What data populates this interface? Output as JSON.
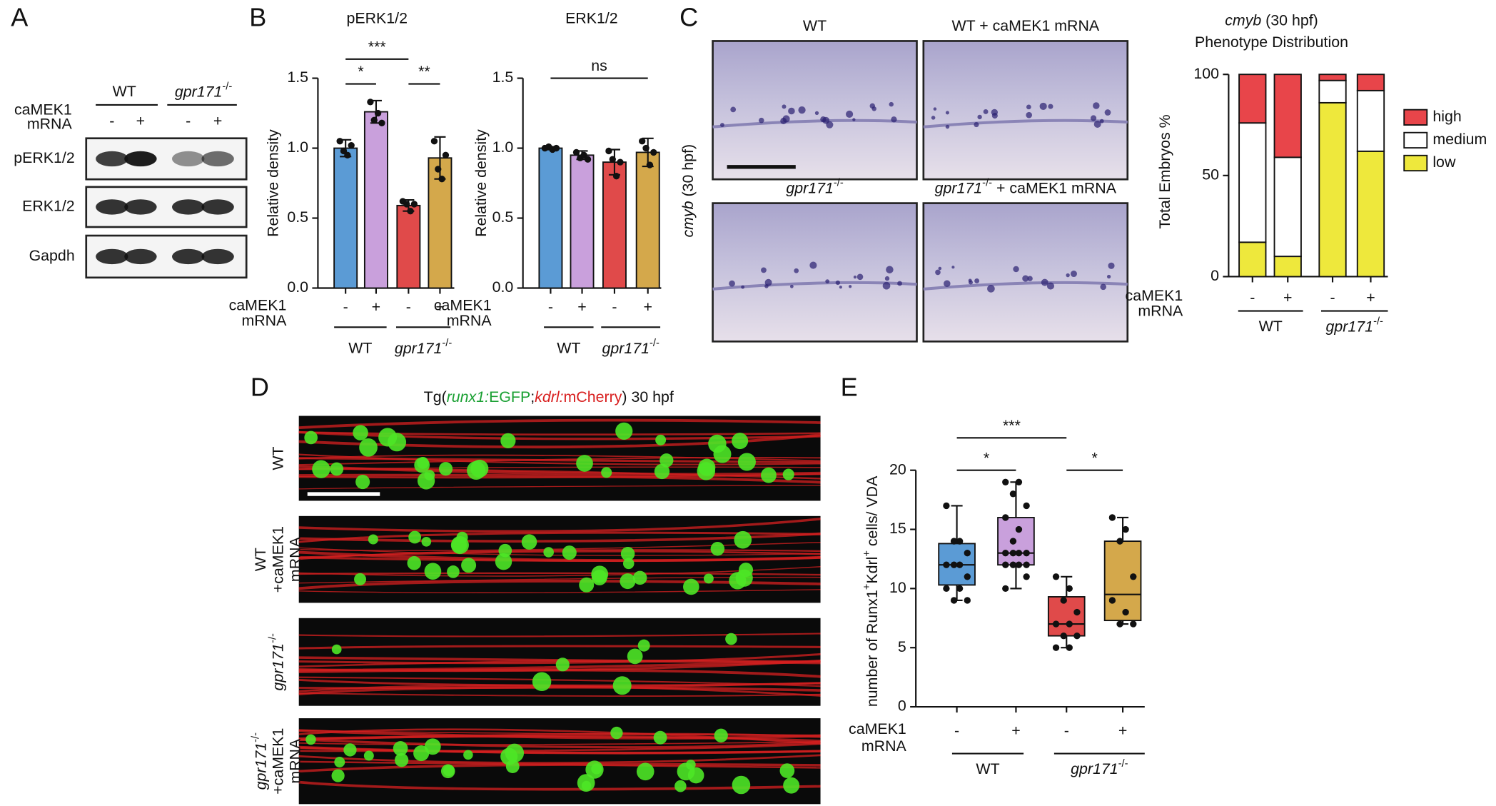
{
  "panel_letters": [
    "A",
    "B",
    "C",
    "D",
    "E"
  ],
  "panel_a": {
    "groups": [
      "WT",
      [
        {
          "text": "gpr171",
          "italic": true
        },
        {
          "text": "-/-",
          "sup": true
        }
      ]
    ],
    "row_label": [
      "caMEK1",
      "mRNA"
    ],
    "lanes": [
      "-",
      "+",
      "-",
      "+"
    ],
    "blots": [
      "pERK1/2",
      "ERK1/2",
      "Gapdh"
    ]
  },
  "panel_c_images": {
    "side_label": [
      {
        "text": "cmyb",
        "italic": true
      },
      {
        "text": " (30 hpf)"
      }
    ],
    "labels": [
      "WT",
      "WT + caMEK1 mRNA",
      [
        {
          "text": "gpr171",
          "italic": true
        },
        {
          "text": "-/-",
          "sup": true
        }
      ],
      [
        {
          "text": "gpr171",
          "italic": true
        },
        {
          "text": "-/-",
          "sup": true
        },
        {
          "text": " + caMEK1 mRNA"
        }
      ]
    ]
  },
  "panel_d": {
    "title": [
      {
        "text": "Tg("
      },
      {
        "text": "runx1:",
        "italic": true,
        "color": "#1aa033"
      },
      {
        "text": "EGFP",
        "color": "#1aa033"
      },
      {
        "text": ";"
      },
      {
        "text": "kdrl:",
        "italic": true,
        "color": "#d81e1e"
      },
      {
        "text": "mCherry",
        "color": "#d81e1e"
      },
      {
        "text": ") 30 hpf"
      }
    ],
    "rows": [
      [
        "WT"
      ],
      [
        "WT",
        "+caMEK1",
        "mRNA"
      ],
      [
        [
          {
            "text": "gpr171",
            "italic": true
          },
          {
            "text": "-/-",
            "sup": true
          }
        ]
      ],
      [
        [
          {
            "text": "gpr171",
            "italic": true
          },
          {
            "text": "-/-",
            "sup": true
          }
        ],
        "+caMEK1",
        "mRNA"
      ]
    ]
  },
  "chart_data": [
    {
      "type": "bar",
      "title": "pERK1/2",
      "y_label": "Relative density",
      "categories": [
        "-",
        "+",
        "-",
        "+"
      ],
      "colors": [
        "#5b9bd5",
        "#c9a0dc",
        "#e04a4a",
        "#d4a84b"
      ],
      "values": [
        1.0,
        1.26,
        0.59,
        0.93
      ],
      "errors": [
        0.06,
        0.08,
        0.04,
        0.15
      ],
      "points": [
        [
          1.05,
          0.98,
          0.95,
          1.02
        ],
        [
          1.33,
          1.2,
          1.25,
          1.18
        ],
        [
          0.62,
          0.6,
          0.55,
          0.6
        ],
        [
          1.05,
          0.85,
          0.78,
          0.95
        ]
      ],
      "ylim": [
        0,
        1.5
      ],
      "yticks": [
        {
          "value": 0,
          "label": "0.0"
        },
        0.5,
        {
          "value": 1,
          "label": "1.0"
        },
        1.5
      ],
      "row_label": [
        "caMEK1",
        "mRNA"
      ],
      "groups": [
        "WT",
        [
          {
            "text": "gpr171",
            "italic": true
          },
          {
            "text": "-/-",
            "sup": true
          }
        ]
      ],
      "annotations": [
        "***",
        "*",
        "**"
      ]
    },
    {
      "type": "bar",
      "title": "ERK1/2",
      "y_label": "Relative density",
      "categories": [
        "-",
        "+",
        "-",
        "+"
      ],
      "colors": [
        "#5b9bd5",
        "#c9a0dc",
        "#e04a4a",
        "#d4a84b"
      ],
      "values": [
        1.0,
        0.95,
        0.9,
        0.97
      ],
      "errors": [
        0.01,
        0.03,
        0.09,
        0.1
      ],
      "points": [
        [
          1.0,
          1.01,
          0.99,
          1.0
        ],
        [
          0.97,
          0.93,
          0.95,
          0.92
        ],
        [
          0.98,
          0.92,
          0.8,
          0.9
        ],
        [
          1.05,
          1.0,
          0.88,
          0.97
        ]
      ],
      "ylim": [
        0,
        1.5
      ],
      "yticks": [
        {
          "value": 0,
          "label": "0.0"
        },
        0.5,
        {
          "value": 1,
          "label": "1.0"
        },
        1.5
      ],
      "row_label": [
        "caMEK1",
        "mRNA"
      ],
      "groups": [
        "WT",
        [
          {
            "text": "gpr171",
            "italic": true
          },
          {
            "text": "-/-",
            "sup": true
          }
        ]
      ],
      "annotations": [
        "ns"
      ]
    },
    {
      "type": "stacked",
      "title": [
        {
          "text": "cmyb",
          "italic": true
        },
        {
          "text": " (30 hpf)"
        }
      ],
      "subtitle": "Phenotype Distribution",
      "y_label": "Total Embryos %",
      "categories": [
        "-",
        "+",
        "-",
        "+"
      ],
      "series": [
        {
          "name": "low",
          "color": "#eee83c",
          "values": [
            17,
            10,
            86,
            62
          ]
        },
        {
          "name": "medium",
          "color": "#ffffff",
          "values": [
            59,
            49,
            11,
            30
          ]
        },
        {
          "name": "high",
          "color": "#e8454a",
          "values": [
            24,
            41,
            3,
            8
          ]
        }
      ],
      "ylim": [
        0,
        100
      ],
      "yticks": [
        0,
        50,
        100
      ],
      "legend": "right",
      "row_label": [
        "caMEK1",
        "mRNA"
      ],
      "groups": [
        "WT",
        [
          {
            "text": "gpr171",
            "italic": true
          },
          {
            "text": "-/-",
            "sup": true
          }
        ]
      ]
    },
    {
      "type": "box",
      "y_label": [
        {
          "text": "number of Runx1"
        },
        {
          "text": "+",
          "sup": true
        },
        {
          "text": "Kdrl"
        },
        {
          "text": "+",
          "sup": true
        },
        {
          "text": " cells/ VDA"
        }
      ],
      "categories": [
        "-",
        "+",
        "-",
        "+"
      ],
      "colors": [
        "#5b9bd5",
        "#c9a0dc",
        "#e04a4a",
        "#d4a84b"
      ],
      "min": [
        9,
        10,
        5,
        7
      ],
      "q1": [
        10.3,
        12,
        6,
        7.3
      ],
      "median": [
        12,
        13,
        7,
        9.5
      ],
      "q3": [
        13.8,
        16,
        9.3,
        14
      ],
      "max": [
        17,
        19,
        11,
        16
      ],
      "points": [
        [
          17,
          14,
          14,
          13,
          12,
          12,
          12,
          11,
          10,
          10,
          9,
          9
        ],
        [
          19,
          19,
          18,
          17,
          16,
          15,
          14,
          13,
          13,
          13,
          13,
          12,
          12,
          12,
          12,
          11,
          10
        ],
        [
          11,
          10,
          9,
          8,
          7,
          7,
          6,
          6,
          5,
          5
        ],
        [
          16,
          15,
          14,
          11,
          9,
          8,
          7,
          7
        ]
      ],
      "ylim": [
        0,
        20
      ],
      "yticks": [
        0,
        5,
        10,
        15,
        20
      ],
      "row_label": [
        "caMEK1",
        "mRNA"
      ],
      "groups": [
        "WT",
        [
          {
            "text": "gpr171",
            "italic": true
          },
          {
            "text": "-/-",
            "sup": true
          }
        ]
      ],
      "annotations": [
        "***",
        "*",
        "*"
      ]
    }
  ]
}
